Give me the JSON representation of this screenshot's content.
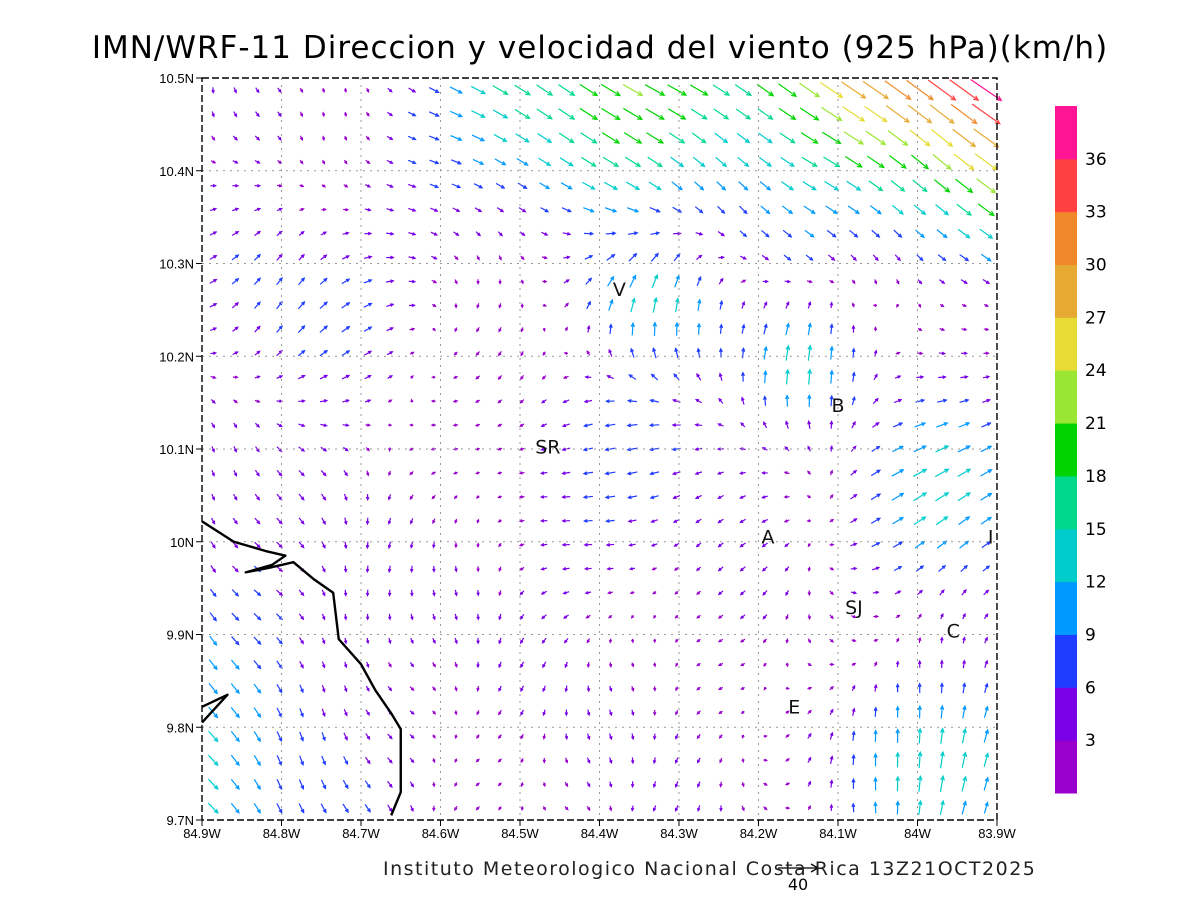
{
  "title": "IMN/WRF-11 Direccion y velocidad del viento (925 hPa)(km/h)",
  "credit": "Instituto Meteorologico Nacional Costa Rica 13Z21OCT2025",
  "reference_vector": {
    "label": "40",
    "speed": 40
  },
  "x_ticks": [
    "84.9W",
    "84.8W",
    "84.7W",
    "84.6W",
    "84.5W",
    "84.4W",
    "84.3W",
    "84.2W",
    "84.1W",
    "84W",
    "83.9W"
  ],
  "y_ticks": [
    "10.5N",
    "10.4N",
    "10.3N",
    "10.2N",
    "10.1N",
    "10N",
    "9.9N",
    "9.8N",
    "9.7N"
  ],
  "extent": {
    "lon_min": -84.9,
    "lon_max": -83.9,
    "lat_min": 9.7,
    "lat_max": 10.5
  },
  "places": [
    {
      "label": "V",
      "lon": -84.375,
      "lat": 10.265
    },
    {
      "label": "B",
      "lon": -84.1,
      "lat": 10.14
    },
    {
      "label": "SR",
      "lon": -84.465,
      "lat": 10.095
    },
    {
      "label": "A",
      "lon": -84.188,
      "lat": 9.998
    },
    {
      "label": "I",
      "lon": -83.908,
      "lat": 9.998
    },
    {
      "label": "SJ",
      "lon": -84.08,
      "lat": 9.922
    },
    {
      "label": "C",
      "lon": -83.955,
      "lat": 9.897
    },
    {
      "label": "E",
      "lon": -84.155,
      "lat": 9.815
    }
  ],
  "colorbar": {
    "levels": [
      "3",
      "6",
      "9",
      "12",
      "15",
      "18",
      "21",
      "24",
      "27",
      "30",
      "33",
      "36"
    ],
    "colors": [
      "#9900cc",
      "#7a00e6",
      "#1f3dff",
      "#0099ff",
      "#00cccc",
      "#00d98c",
      "#00d400",
      "#99e633",
      "#e6dc33",
      "#e6aa33",
      "#f0882a",
      "#ff4040",
      "#ff1493"
    ]
  },
  "coastline": [
    [
      -84.9,
      10.022
    ],
    [
      -84.86,
      10.0
    ],
    [
      -84.82,
      9.99
    ],
    [
      -84.795,
      9.985
    ],
    [
      -84.812,
      9.975
    ],
    [
      -84.845,
      9.967
    ],
    [
      -84.815,
      9.972
    ],
    [
      -84.785,
      9.978
    ],
    [
      -84.76,
      9.96
    ],
    [
      -84.735,
      9.945
    ],
    [
      -84.728,
      9.895
    ],
    [
      -84.7,
      9.868
    ],
    [
      -84.682,
      9.84
    ],
    [
      -84.662,
      9.815
    ],
    [
      -84.65,
      9.798
    ],
    [
      -84.65,
      9.75
    ],
    [
      -84.65,
      9.73
    ],
    [
      -84.662,
      9.705
    ]
  ],
  "coastline_nicoya": [
    [
      -84.9,
      9.822
    ],
    [
      -84.868,
      9.835
    ],
    [
      -84.9,
      9.805
    ]
  ]
}
